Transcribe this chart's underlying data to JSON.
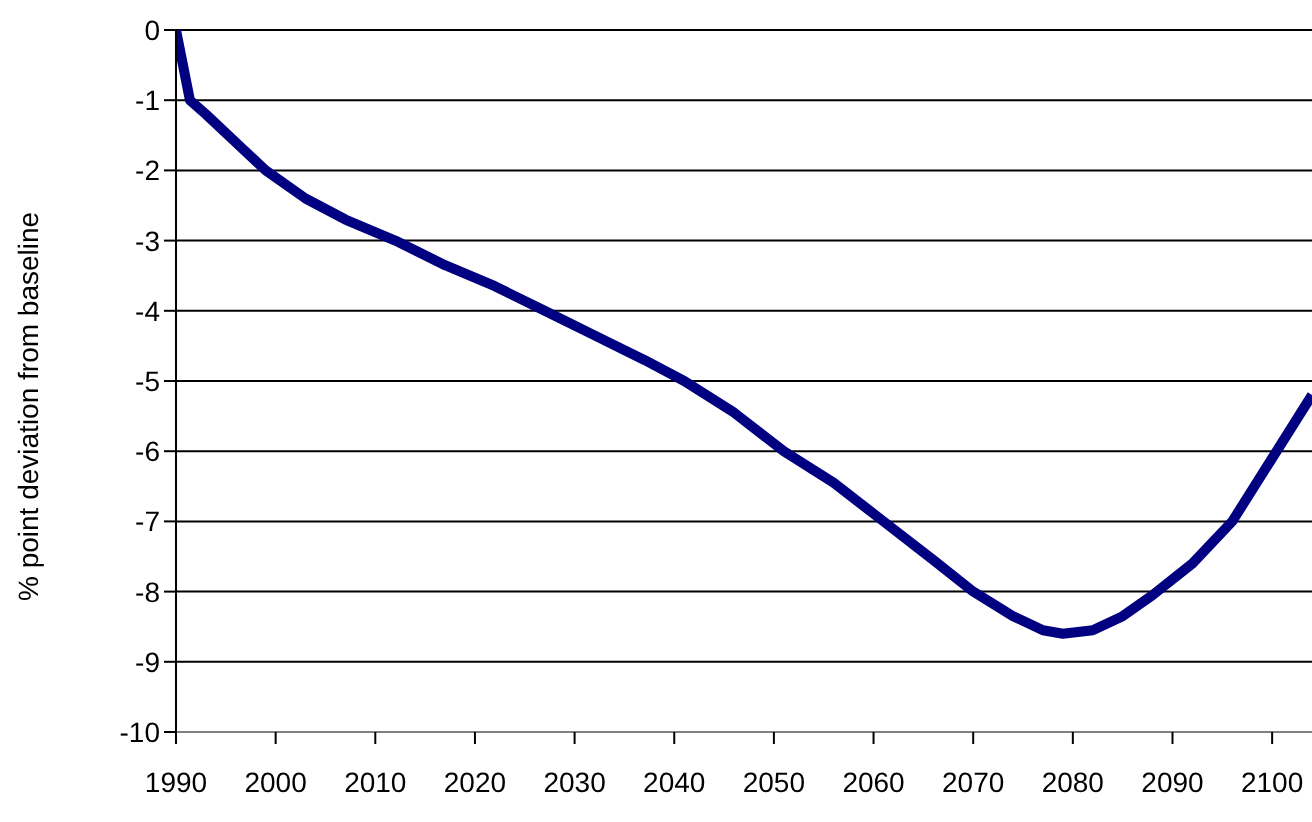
{
  "chart_data": {
    "type": "line",
    "ylabel": "% point deviation from baseline",
    "x": [
      1990,
      1991.4,
      1993,
      1996,
      1999,
      2003,
      2007,
      2012,
      2017,
      2022,
      2027,
      2032,
      2037,
      2041,
      2046,
      2051,
      2056,
      2061,
      2066,
      2070,
      2074,
      2077,
      2079,
      2082,
      2085,
      2088,
      2092,
      2096,
      2100,
      2104
    ],
    "series": [
      {
        "color": "#000080",
        "values": [
          0,
          -1,
          -1.2,
          -1.6,
          -2,
          -2.4,
          -2.7,
          -3,
          -3.35,
          -3.65,
          -4,
          -4.35,
          -4.7,
          -5,
          -5.45,
          -6,
          -6.45,
          -7,
          -7.55,
          -8,
          -8.35,
          -8.55,
          -8.6,
          -8.55,
          -8.35,
          -8.05,
          -7.6,
          -7,
          -6.1,
          -5.2
        ]
      }
    ],
    "xlim": [
      1990,
      2104
    ],
    "xticks": [
      1990,
      2000,
      2010,
      2020,
      2030,
      2040,
      2050,
      2060,
      2070,
      2080,
      2090,
      2100
    ],
    "ylim": [
      -10,
      0
    ],
    "yticks": [
      -10,
      -9,
      -8,
      -7,
      -6,
      -5,
      -4,
      -3,
      -2,
      -1,
      0
    ],
    "grid": "y",
    "legend": false,
    "marker": "none",
    "line_style": "solid"
  }
}
